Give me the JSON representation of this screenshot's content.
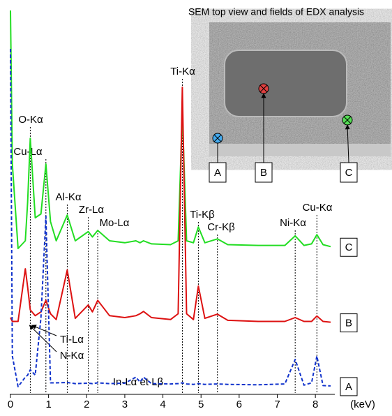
{
  "chart_data": {
    "type": "line",
    "inset_title": "SEM top view and fields of EDX analysis",
    "x_label": "(keV)",
    "x": [
      0,
      0.05,
      0.2,
      0.39,
      0.45,
      0.52,
      0.65,
      0.8,
      0.93,
      1.05,
      1.2,
      1.49,
      1.7,
      2.04,
      2.15,
      2.29,
      2.6,
      3.0,
      3.29,
      3.4,
      3.49,
      3.7,
      4.2,
      4.4,
      4.51,
      4.62,
      4.8,
      4.93,
      5.1,
      5.43,
      5.7,
      6.5,
      7.2,
      7.47,
      7.7,
      7.9,
      8.04,
      8.2,
      8.4
    ],
    "series": [
      {
        "name": "C",
        "color": "#22dd22",
        "dashed": false,
        "values": [
          100,
          60,
          38,
          40,
          50,
          66.7,
          46,
          47,
          60,
          45,
          40,
          46.7,
          40,
          42.4,
          41,
          42.7,
          40,
          39.5,
          40,
          39.5,
          40,
          39.2,
          39,
          40,
          73.6,
          40,
          39.5,
          43.6,
          39.5,
          40.5,
          39,
          38.8,
          38.8,
          41.3,
          38.8,
          39.2,
          41.6,
          39,
          38.5
        ]
      },
      {
        "name": "B",
        "color": "#dd1111",
        "dashed": false,
        "values": [
          20,
          19,
          19,
          32.7,
          28,
          22,
          20.5,
          21.5,
          24.5,
          21,
          19.5,
          32.4,
          19.8,
          23.3,
          21.5,
          24.5,
          20.5,
          20,
          20.5,
          21,
          21.6,
          20,
          19.5,
          21,
          80,
          21,
          19.5,
          28.2,
          19.8,
          20.9,
          19.3,
          19,
          19,
          20,
          19,
          19,
          20.4,
          19,
          18.8
        ]
      },
      {
        "name": "A",
        "color": "#1133cc",
        "dashed": true,
        "values": [
          90,
          10,
          2,
          4.5,
          5,
          6.4,
          5,
          20,
          46.4,
          3,
          3,
          3.1,
          2.8,
          2.9,
          2.8,
          3,
          2.8,
          2.9,
          4.5,
          3.2,
          4.5,
          2.8,
          2.7,
          2.8,
          3,
          2.7,
          2.6,
          2.8,
          2.6,
          2.7,
          2.6,
          2.5,
          2.7,
          9.1,
          2.4,
          3,
          10,
          2.3,
          2.2
        ]
      }
    ],
    "xlim": [
      0,
      8.4
    ],
    "xticks": [
      0,
      1,
      2,
      3,
      4,
      5,
      6,
      7,
      8
    ],
    "ylim": [
      0,
      100
    ],
    "annotations": [
      {
        "text": "O-Kα",
        "x": 0.52
      },
      {
        "text": "Cu-Lα",
        "x": 0.93
      },
      {
        "text": "Al-Kα",
        "x": 1.49
      },
      {
        "text": "Zr-Lα",
        "x": 2.04
      },
      {
        "text": "Mo-Lα",
        "x": 2.29
      },
      {
        "text": "Ti-Kα",
        "x": 4.51
      },
      {
        "text": "Ti-Kβ",
        "x": 4.93
      },
      {
        "text": "Cr-Kβ",
        "x": 5.43
      },
      {
        "text": "Ni-Kα",
        "x": 7.47
      },
      {
        "text": "Cu-Kα",
        "x": 8.04
      },
      {
        "text": "Ti-Lα",
        "x": 0.45
      },
      {
        "text": "N-Kα",
        "x": 0.39
      },
      {
        "text": "In-Lα et Lβ",
        "x": 3.4
      }
    ]
  }
}
